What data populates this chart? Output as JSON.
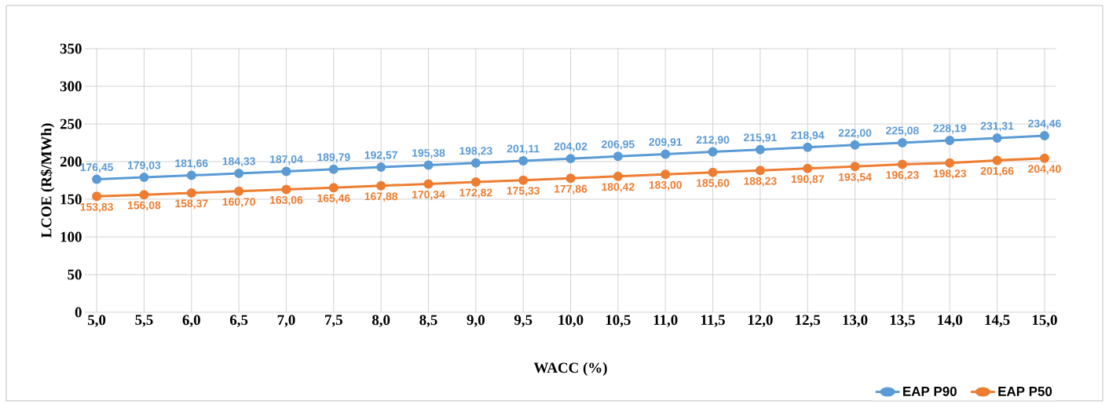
{
  "chart_data": {
    "type": "line",
    "xlabel": "WACC  (%)",
    "ylabel": "LCOE (R$/MWh)",
    "categories": [
      "5,0",
      "5,5",
      "6,0",
      "6,5",
      "7,0",
      "7,5",
      "8,0",
      "8,5",
      "9,0",
      "9,5",
      "10,0",
      "10,5",
      "11,0",
      "11,5",
      "12,0",
      "12,5",
      "13,0",
      "13,5",
      "14,0",
      "14,5",
      "15,0"
    ],
    "ylim": [
      0,
      350
    ],
    "yticks": [
      0,
      50,
      100,
      150,
      200,
      250,
      300,
      350
    ],
    "grid": true,
    "legend": "bottom right",
    "marker": "circle",
    "line_style": "solid",
    "series": [
      {
        "name": "EAP P90",
        "color": "#5b9bd5",
        "values": [
          176.45,
          179.03,
          181.66,
          184.33,
          187.04,
          189.79,
          192.57,
          195.38,
          198.23,
          201.11,
          204.02,
          206.95,
          209.91,
          212.9,
          215.91,
          218.94,
          222.0,
          225.08,
          228.19,
          231.31,
          234.46
        ],
        "value_labels": [
          "176,45",
          "179,03",
          "181,66",
          "184,33",
          "187,04",
          "189,79",
          "192,57",
          "195,38",
          "198,23",
          "201,11",
          "204,02",
          "206,95",
          "209,91",
          "212,90",
          "215,91",
          "218,94",
          "222,00",
          "225,08",
          "228,19",
          "231,31",
          "234,46"
        ]
      },
      {
        "name": "EAP P50",
        "color": "#ed7d31",
        "values": [
          153.83,
          156.08,
          158.37,
          160.7,
          163.06,
          165.46,
          167.88,
          170.34,
          172.82,
          175.33,
          177.86,
          180.42,
          183.0,
          185.6,
          188.23,
          190.87,
          193.54,
          196.23,
          198.23,
          201.66,
          204.4
        ],
        "value_labels": [
          "153,83",
          "156,08",
          "158,37",
          "160,70",
          "163,06",
          "165,46",
          "167,88",
          "170,34",
          "172,82",
          "175,33",
          "177,86",
          "180,42",
          "183,00",
          "185,60",
          "188,23",
          "190,87",
          "193,54",
          "196,23",
          "198,23",
          "201,66",
          "204,40"
        ]
      }
    ]
  }
}
